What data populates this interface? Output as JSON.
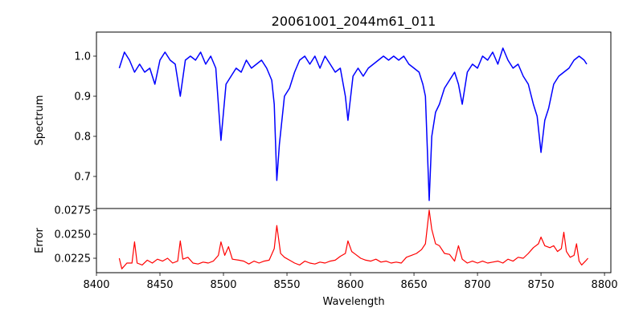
{
  "chart_data": {
    "type": "line",
    "title": "20061001_2044m61_011",
    "xlabel": "Wavelength",
    "xlim": [
      8400,
      8805
    ],
    "xticks": [
      "8400",
      "8450",
      "8500",
      "8550",
      "8600",
      "8650",
      "8700",
      "8750",
      "8800"
    ],
    "panels": [
      {
        "name": "spectrum",
        "ylabel": "Spectrum",
        "ylim": [
          0.62,
          1.06
        ],
        "yticks": [
          "0.7",
          "0.8",
          "0.9",
          "1.0"
        ],
        "color": "#0000ff",
        "points": [
          [
            8418,
            0.97
          ],
          [
            8422,
            1.01
          ],
          [
            8426,
            0.99
          ],
          [
            8430,
            0.96
          ],
          [
            8434,
            0.98
          ],
          [
            8438,
            0.96
          ],
          [
            8442,
            0.97
          ],
          [
            8446,
            0.93
          ],
          [
            8450,
            0.99
          ],
          [
            8454,
            1.01
          ],
          [
            8458,
            0.99
          ],
          [
            8462,
            0.98
          ],
          [
            8466,
            0.9
          ],
          [
            8470,
            0.99
          ],
          [
            8474,
            1.0
          ],
          [
            8478,
            0.99
          ],
          [
            8482,
            1.01
          ],
          [
            8486,
            0.98
          ],
          [
            8490,
            1.0
          ],
          [
            8494,
            0.97
          ],
          [
            8498,
            0.79
          ],
          [
            8502,
            0.93
          ],
          [
            8506,
            0.95
          ],
          [
            8510,
            0.97
          ],
          [
            8514,
            0.96
          ],
          [
            8518,
            0.99
          ],
          [
            8522,
            0.97
          ],
          [
            8526,
            0.98
          ],
          [
            8530,
            0.99
          ],
          [
            8534,
            0.97
          ],
          [
            8538,
            0.94
          ],
          [
            8540,
            0.88
          ],
          [
            8542,
            0.69
          ],
          [
            8544,
            0.78
          ],
          [
            8548,
            0.9
          ],
          [
            8552,
            0.92
          ],
          [
            8556,
            0.96
          ],
          [
            8560,
            0.99
          ],
          [
            8564,
            1.0
          ],
          [
            8568,
            0.98
          ],
          [
            8572,
            1.0
          ],
          [
            8576,
            0.97
          ],
          [
            8580,
            1.0
          ],
          [
            8584,
            0.98
          ],
          [
            8588,
            0.96
          ],
          [
            8592,
            0.97
          ],
          [
            8596,
            0.9
          ],
          [
            8598,
            0.84
          ],
          [
            8602,
            0.95
          ],
          [
            8606,
            0.97
          ],
          [
            8610,
            0.95
          ],
          [
            8614,
            0.97
          ],
          [
            8618,
            0.98
          ],
          [
            8622,
            0.99
          ],
          [
            8626,
            1.0
          ],
          [
            8630,
            0.99
          ],
          [
            8634,
            1.0
          ],
          [
            8638,
            0.99
          ],
          [
            8642,
            1.0
          ],
          [
            8646,
            0.98
          ],
          [
            8650,
            0.97
          ],
          [
            8654,
            0.96
          ],
          [
            8657,
            0.93
          ],
          [
            8659,
            0.9
          ],
          [
            8662,
            0.64
          ],
          [
            8664,
            0.8
          ],
          [
            8667,
            0.86
          ],
          [
            8670,
            0.88
          ],
          [
            8674,
            0.92
          ],
          [
            8678,
            0.94
          ],
          [
            8682,
            0.96
          ],
          [
            8685,
            0.93
          ],
          [
            8688,
            0.88
          ],
          [
            8692,
            0.96
          ],
          [
            8696,
            0.98
          ],
          [
            8700,
            0.97
          ],
          [
            8704,
            1.0
          ],
          [
            8708,
            0.99
          ],
          [
            8712,
            1.01
          ],
          [
            8716,
            0.98
          ],
          [
            8720,
            1.02
          ],
          [
            8724,
            0.99
          ],
          [
            8728,
            0.97
          ],
          [
            8732,
            0.98
          ],
          [
            8736,
            0.95
          ],
          [
            8740,
            0.93
          ],
          [
            8744,
            0.88
          ],
          [
            8747,
            0.85
          ],
          [
            8750,
            0.76
          ],
          [
            8753,
            0.84
          ],
          [
            8756,
            0.87
          ],
          [
            8760,
            0.93
          ],
          [
            8764,
            0.95
          ],
          [
            8768,
            0.96
          ],
          [
            8772,
            0.97
          ],
          [
            8776,
            0.99
          ],
          [
            8780,
            1.0
          ],
          [
            8784,
            0.99
          ],
          [
            8786,
            0.98
          ]
        ]
      },
      {
        "name": "error",
        "ylabel": "Error",
        "ylim": [
          0.021,
          0.02767
        ],
        "yticks": [
          "0.0225",
          "0.0250",
          "0.0275"
        ],
        "color": "#ff0000",
        "points": [
          [
            8418,
            0.0225
          ],
          [
            8420,
            0.0214
          ],
          [
            8424,
            0.022
          ],
          [
            8428,
            0.022
          ],
          [
            8430,
            0.0242
          ],
          [
            8432,
            0.022
          ],
          [
            8436,
            0.0218
          ],
          [
            8440,
            0.0223
          ],
          [
            8444,
            0.022
          ],
          [
            8448,
            0.0224
          ],
          [
            8452,
            0.0222
          ],
          [
            8456,
            0.0225
          ],
          [
            8460,
            0.022
          ],
          [
            8464,
            0.0222
          ],
          [
            8466,
            0.0243
          ],
          [
            8468,
            0.0224
          ],
          [
            8472,
            0.0226
          ],
          [
            8476,
            0.022
          ],
          [
            8480,
            0.0219
          ],
          [
            8484,
            0.0221
          ],
          [
            8488,
            0.022
          ],
          [
            8492,
            0.0222
          ],
          [
            8496,
            0.0228
          ],
          [
            8498,
            0.0242
          ],
          [
            8501,
            0.0228
          ],
          [
            8504,
            0.0237
          ],
          [
            8507,
            0.0224
          ],
          [
            8512,
            0.0223
          ],
          [
            8516,
            0.0222
          ],
          [
            8520,
            0.0219
          ],
          [
            8524,
            0.0222
          ],
          [
            8528,
            0.022
          ],
          [
            8532,
            0.0222
          ],
          [
            8536,
            0.0223
          ],
          [
            8540,
            0.0235
          ],
          [
            8542,
            0.0259
          ],
          [
            8545,
            0.023
          ],
          [
            8548,
            0.0226
          ],
          [
            8552,
            0.0223
          ],
          [
            8556,
            0.022
          ],
          [
            8560,
            0.0218
          ],
          [
            8564,
            0.0222
          ],
          [
            8568,
            0.022
          ],
          [
            8572,
            0.0219
          ],
          [
            8576,
            0.0221
          ],
          [
            8580,
            0.022
          ],
          [
            8584,
            0.0222
          ],
          [
            8588,
            0.0223
          ],
          [
            8592,
            0.0227
          ],
          [
            8596,
            0.023
          ],
          [
            8598,
            0.0243
          ],
          [
            8601,
            0.0232
          ],
          [
            8604,
            0.0229
          ],
          [
            8608,
            0.0225
          ],
          [
            8612,
            0.0223
          ],
          [
            8616,
            0.0222
          ],
          [
            8620,
            0.0224
          ],
          [
            8624,
            0.0221
          ],
          [
            8628,
            0.0222
          ],
          [
            8632,
            0.022
          ],
          [
            8636,
            0.0221
          ],
          [
            8640,
            0.022
          ],
          [
            8644,
            0.0226
          ],
          [
            8648,
            0.0228
          ],
          [
            8652,
            0.023
          ],
          [
            8656,
            0.0234
          ],
          [
            8659,
            0.024
          ],
          [
            8662,
            0.0275
          ],
          [
            8664,
            0.0255
          ],
          [
            8667,
            0.024
          ],
          [
            8670,
            0.0238
          ],
          [
            8674,
            0.023
          ],
          [
            8678,
            0.0229
          ],
          [
            8682,
            0.0222
          ],
          [
            8685,
            0.0238
          ],
          [
            8688,
            0.0224
          ],
          [
            8692,
            0.022
          ],
          [
            8696,
            0.0222
          ],
          [
            8700,
            0.022
          ],
          [
            8704,
            0.0222
          ],
          [
            8708,
            0.022
          ],
          [
            8712,
            0.0221
          ],
          [
            8716,
            0.0222
          ],
          [
            8720,
            0.022
          ],
          [
            8724,
            0.0224
          ],
          [
            8728,
            0.0222
          ],
          [
            8732,
            0.0226
          ],
          [
            8736,
            0.0225
          ],
          [
            8740,
            0.023
          ],
          [
            8744,
            0.0236
          ],
          [
            8748,
            0.024
          ],
          [
            8750,
            0.0247
          ],
          [
            8753,
            0.0238
          ],
          [
            8757,
            0.0236
          ],
          [
            8760,
            0.0238
          ],
          [
            8763,
            0.0232
          ],
          [
            8766,
            0.0235
          ],
          [
            8768,
            0.0252
          ],
          [
            8770,
            0.0232
          ],
          [
            8773,
            0.0226
          ],
          [
            8776,
            0.0228
          ],
          [
            8778,
            0.024
          ],
          [
            8780,
            0.0222
          ],
          [
            8782,
            0.0218
          ],
          [
            8785,
            0.0222
          ],
          [
            8787,
            0.0225
          ]
        ]
      }
    ],
    "grid": false
  }
}
